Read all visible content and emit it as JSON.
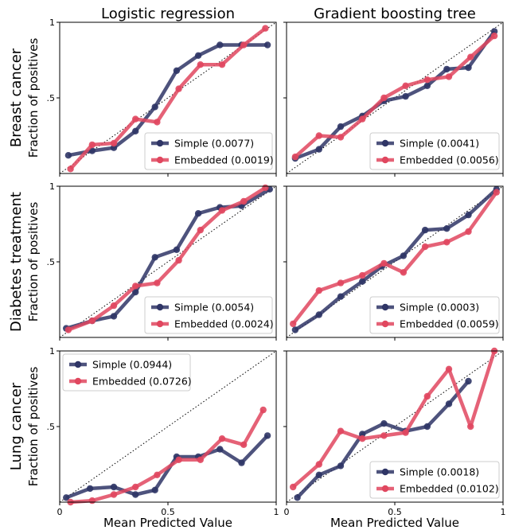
{
  "column_titles": [
    "Logistic regression",
    "Gradient boosting tree"
  ],
  "row_titles": [
    "Breast cancer",
    "Diabetes treatment",
    "Lung cancer"
  ],
  "ylabel": "Fraction of positives",
  "xlabel": "Mean Predicted Value",
  "colors": {
    "simple": "#2f3566",
    "embedded": "#e0475f"
  },
  "chart_data": [
    {
      "type": "line",
      "row": "Breast cancer",
      "column": "Logistic regression",
      "xlim": [
        0,
        1
      ],
      "ylim": [
        0,
        1
      ],
      "x_ticks": [
        "0",
        "0.5",
        "1"
      ],
      "y_ticks": [
        ".5",
        "1"
      ],
      "legend_position": "bottom-right",
      "series": [
        {
          "name": "Simple (0.0077)",
          "key": "simple",
          "x": [
            0.04,
            0.15,
            0.25,
            0.35,
            0.44,
            0.54,
            0.64,
            0.74,
            0.84,
            0.96
          ],
          "y": [
            0.12,
            0.15,
            0.17,
            0.28,
            0.44,
            0.68,
            0.78,
            0.85,
            0.85,
            0.85
          ]
        },
        {
          "name": "Embedded (0.0019)",
          "key": "embedded",
          "x": [
            0.05,
            0.15,
            0.25,
            0.35,
            0.45,
            0.55,
            0.65,
            0.75,
            0.85,
            0.95
          ],
          "y": [
            0.03,
            0.19,
            0.2,
            0.36,
            0.34,
            0.56,
            0.72,
            0.72,
            0.85,
            0.96
          ]
        }
      ]
    },
    {
      "type": "line",
      "row": "Breast cancer",
      "column": "Gradient boosting tree",
      "xlim": [
        0,
        1
      ],
      "ylim": [
        0,
        1
      ],
      "x_ticks": [
        "0",
        "0.5",
        "1"
      ],
      "y_ticks": [],
      "legend_position": "bottom-right",
      "series": [
        {
          "name": "Simple (0.0041)",
          "key": "simple",
          "x": [
            0.04,
            0.15,
            0.25,
            0.35,
            0.45,
            0.55,
            0.65,
            0.74,
            0.84,
            0.96
          ],
          "y": [
            0.1,
            0.16,
            0.31,
            0.38,
            0.48,
            0.51,
            0.58,
            0.69,
            0.7,
            0.94
          ]
        },
        {
          "name": "Embedded (0.0056)",
          "key": "embedded",
          "x": [
            0.04,
            0.15,
            0.25,
            0.35,
            0.45,
            0.55,
            0.65,
            0.75,
            0.85,
            0.96
          ],
          "y": [
            0.11,
            0.25,
            0.24,
            0.36,
            0.5,
            0.58,
            0.62,
            0.64,
            0.77,
            0.91
          ]
        }
      ]
    },
    {
      "type": "line",
      "row": "Diabetes treatment",
      "column": "Logistic regression",
      "xlim": [
        0,
        1
      ],
      "ylim": [
        0,
        1
      ],
      "x_ticks": [
        "0",
        "0.5",
        "1"
      ],
      "y_ticks": [
        ".5",
        "1"
      ],
      "legend_position": "bottom-right",
      "series": [
        {
          "name": "Simple (0.0054)",
          "key": "simple",
          "x": [
            0.03,
            0.15,
            0.25,
            0.35,
            0.44,
            0.54,
            0.64,
            0.74,
            0.84,
            0.97
          ],
          "y": [
            0.06,
            0.11,
            0.14,
            0.3,
            0.53,
            0.58,
            0.82,
            0.86,
            0.87,
            0.98
          ]
        },
        {
          "name": "Embedded (0.0024)",
          "key": "embedded",
          "x": [
            0.04,
            0.15,
            0.25,
            0.35,
            0.45,
            0.55,
            0.65,
            0.75,
            0.85,
            0.95
          ],
          "y": [
            0.05,
            0.11,
            0.21,
            0.34,
            0.36,
            0.51,
            0.71,
            0.84,
            0.9,
            0.99
          ]
        }
      ]
    },
    {
      "type": "line",
      "row": "Diabetes treatment",
      "column": "Gradient boosting tree",
      "xlim": [
        0,
        1
      ],
      "ylim": [
        0,
        1
      ],
      "x_ticks": [
        "0",
        "0.5",
        "1"
      ],
      "y_ticks": [],
      "legend_position": "bottom-right",
      "series": [
        {
          "name": "Simple (0.0003)",
          "key": "simple",
          "x": [
            0.04,
            0.15,
            0.25,
            0.35,
            0.44,
            0.54,
            0.64,
            0.74,
            0.84,
            0.97
          ],
          "y": [
            0.05,
            0.15,
            0.27,
            0.37,
            0.47,
            0.54,
            0.71,
            0.72,
            0.81,
            0.98
          ]
        },
        {
          "name": "Embedded (0.0059)",
          "key": "embedded",
          "x": [
            0.03,
            0.15,
            0.25,
            0.35,
            0.45,
            0.54,
            0.64,
            0.74,
            0.84,
            0.97
          ],
          "y": [
            0.09,
            0.31,
            0.36,
            0.41,
            0.49,
            0.43,
            0.6,
            0.63,
            0.7,
            0.96
          ]
        }
      ]
    },
    {
      "type": "line",
      "row": "Lung cancer",
      "column": "Logistic regression",
      "xlim": [
        0,
        1
      ],
      "ylim": [
        0,
        1
      ],
      "x_ticks": [
        "0",
        "0.5",
        "1"
      ],
      "y_ticks": [
        ".5",
        "1"
      ],
      "legend_position": "top-left",
      "series": [
        {
          "name": "Simple (0.0944)",
          "key": "simple",
          "x": [
            0.03,
            0.14,
            0.25,
            0.35,
            0.44,
            0.54,
            0.64,
            0.74,
            0.84,
            0.96
          ],
          "y": [
            0.03,
            0.09,
            0.1,
            0.05,
            0.08,
            0.3,
            0.3,
            0.35,
            0.26,
            0.44
          ]
        },
        {
          "name": "Embedded (0.0726)",
          "key": "embedded",
          "x": [
            0.05,
            0.15,
            0.25,
            0.35,
            0.45,
            0.55,
            0.65,
            0.75,
            0.85,
            0.94
          ],
          "y": [
            0.0,
            0.01,
            0.05,
            0.1,
            0.18,
            0.28,
            0.28,
            0.42,
            0.38,
            0.61
          ]
        }
      ]
    },
    {
      "type": "line",
      "row": "Lung cancer",
      "column": "Gradient boosting tree",
      "xlim": [
        0,
        1
      ],
      "ylim": [
        0,
        1
      ],
      "x_ticks": [
        "0",
        "0.5",
        "1"
      ],
      "y_ticks": [],
      "legend_position": "bottom-right",
      "series": [
        {
          "name": "Simple (0.0018)",
          "key": "simple",
          "x": [
            0.05,
            0.15,
            0.25,
            0.35,
            0.45,
            0.55,
            0.65,
            0.75,
            0.84
          ],
          "y": [
            0.03,
            0.18,
            0.24,
            0.45,
            0.52,
            0.47,
            0.5,
            0.65,
            0.8
          ]
        },
        {
          "name": "Embedded (0.0102)",
          "key": "embedded",
          "x": [
            0.03,
            0.15,
            0.25,
            0.35,
            0.45,
            0.55,
            0.65,
            0.75,
            0.85,
            0.96
          ],
          "y": [
            0.1,
            0.25,
            0.47,
            0.42,
            0.44,
            0.46,
            0.7,
            0.88,
            0.5,
            1.0
          ]
        }
      ]
    }
  ]
}
